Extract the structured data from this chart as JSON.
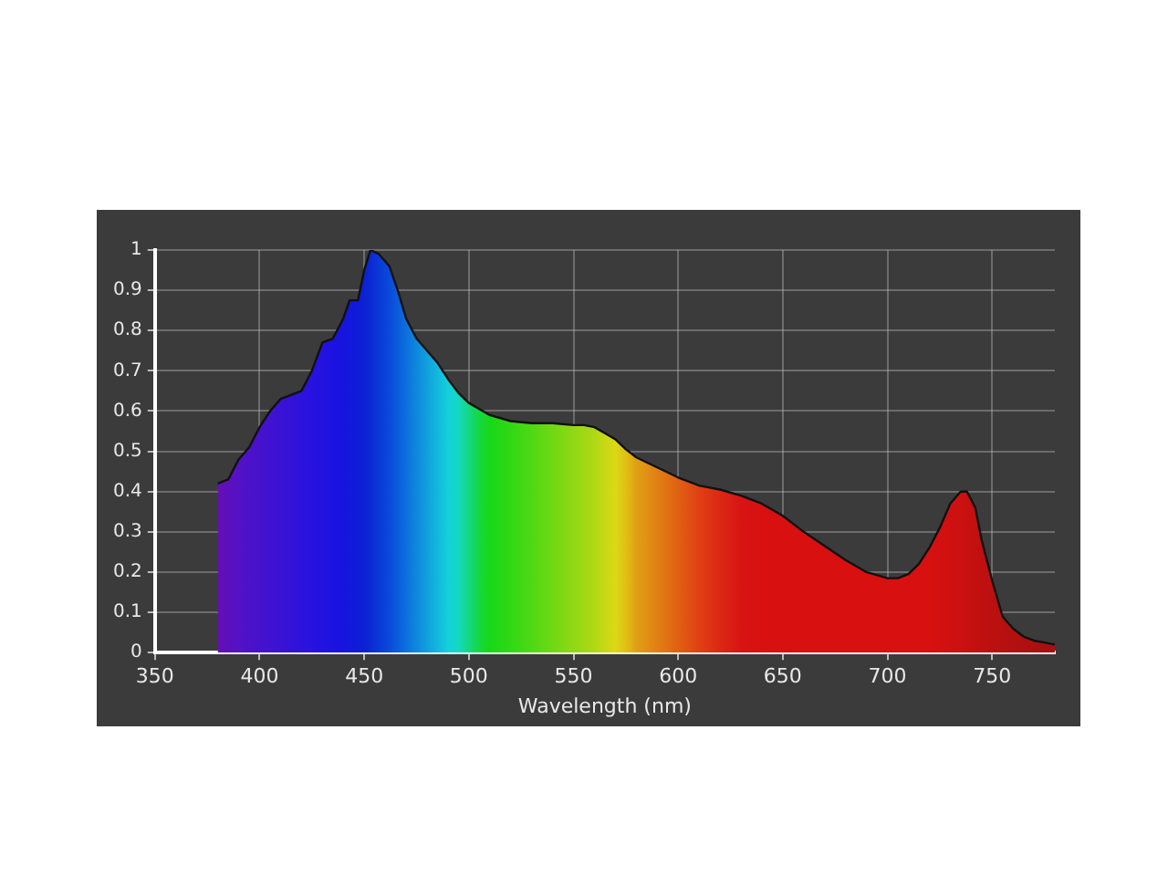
{
  "chart_data": {
    "type": "area",
    "xlabel": "Wavelength (nm)",
    "x": [
      380,
      385,
      390,
      395,
      400,
      405,
      410,
      415,
      420,
      425,
      430,
      435,
      440,
      443,
      447,
      450,
      453,
      457,
      462,
      466,
      470,
      475,
      480,
      485,
      490,
      495,
      500,
      505,
      510,
      520,
      530,
      540,
      550,
      555,
      560,
      565,
      570,
      575,
      580,
      590,
      600,
      610,
      620,
      630,
      640,
      650,
      660,
      670,
      680,
      690,
      700,
      705,
      710,
      715,
      720,
      725,
      730,
      735,
      738,
      742,
      745,
      750,
      755,
      760,
      765,
      770,
      775,
      780
    ],
    "series": [
      {
        "values": [
          0.42,
          0.43,
          0.48,
          0.51,
          0.56,
          0.6,
          0.63,
          0.64,
          0.65,
          0.7,
          0.77,
          0.78,
          0.83,
          0.875,
          0.875,
          0.95,
          1.0,
          0.99,
          0.96,
          0.9,
          0.83,
          0.78,
          0.75,
          0.72,
          0.68,
          0.645,
          0.62,
          0.605,
          0.59,
          0.575,
          0.57,
          0.57,
          0.565,
          0.565,
          0.56,
          0.545,
          0.53,
          0.505,
          0.485,
          0.46,
          0.435,
          0.415,
          0.405,
          0.39,
          0.37,
          0.34,
          0.3,
          0.265,
          0.23,
          0.2,
          0.185,
          0.185,
          0.195,
          0.22,
          0.26,
          0.31,
          0.37,
          0.4,
          0.4,
          0.36,
          0.28,
          0.18,
          0.09,
          0.06,
          0.04,
          0.03,
          0.025,
          0.02
        ],
        "colors": [
          "#6410b4",
          "#5c10bc",
          "#5412c4",
          "#4c12c8",
          "#4612cc",
          "#4012d0",
          "#3a12d4",
          "#3412d8",
          "#2e12dc",
          "#2812e0",
          "#2212e0",
          "#1c12e0",
          "#1614e0",
          "#1218dc",
          "#0e1cd8",
          "#0c22d4",
          "#0a2ad4",
          "#0a38d8",
          "#0a4ada",
          "#0a5cdc",
          "#0c70dc",
          "#0e88dc",
          "#10a0dc",
          "#12b8dc",
          "#14d0dc",
          "#14d8c0",
          "#14d880",
          "#14d840",
          "#18d818",
          "#30d814",
          "#50d814",
          "#70d814",
          "#90d814",
          "#a0d814",
          "#b0d814",
          "#c8d814",
          "#dcd814",
          "#e0c014",
          "#e0a014",
          "#e08014",
          "#e06014",
          "#e04014",
          "#dc2814",
          "#d81414",
          "#d81010",
          "#d81010",
          "#d81010",
          "#d81010",
          "#d81010",
          "#d81010",
          "#d81010",
          "#d81010",
          "#d81010",
          "#d81010",
          "#d81010",
          "#d41010",
          "#d01010",
          "#cc1010",
          "#c81010",
          "#c41010",
          "#c01010",
          "#bc1010",
          "#b81010",
          "#b41010",
          "#b01010",
          "#ac1010",
          "#a81010",
          "#a41010"
        ]
      }
    ],
    "xlim": [
      350,
      780
    ],
    "xticks": [
      350,
      400,
      450,
      500,
      550,
      600,
      650,
      700,
      750
    ],
    "ylim": [
      0,
      1
    ],
    "yticks": [
      0,
      0.1,
      0.2,
      0.3,
      0.4,
      0.5,
      0.6,
      0.7,
      0.8,
      0.9,
      1
    ],
    "grid": true,
    "line_style": "solid",
    "marker": "none"
  }
}
